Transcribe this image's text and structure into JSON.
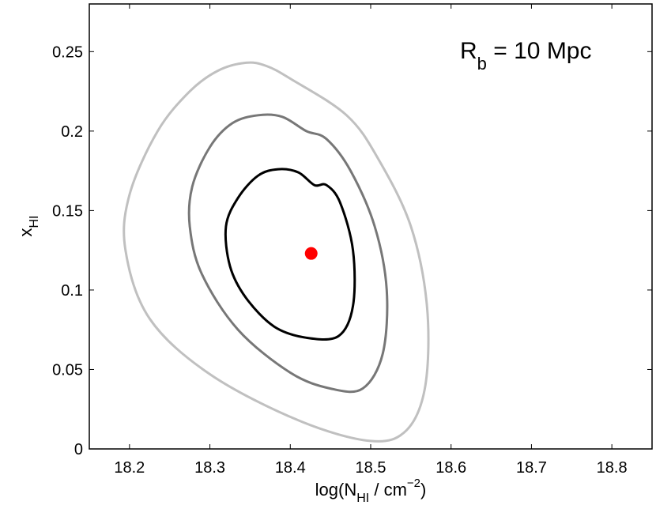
{
  "chart_data": {
    "type": "scatter",
    "xlabel": {
      "pre": "log(N",
      "sub": "HI",
      "mid": " / cm",
      "sup": "−2",
      "post": ")"
    },
    "ylabel": {
      "main": "x",
      "sub": "HI"
    },
    "annotation": {
      "main": "R",
      "sub": "b",
      "rest": " = 10 Mpc"
    },
    "xlim": [
      18.15,
      18.85
    ],
    "ylim": [
      0,
      0.28
    ],
    "xticks": [
      18.2,
      18.3,
      18.4,
      18.5,
      18.6,
      18.7,
      18.8
    ],
    "xtick_labels": [
      "18.2",
      "18.3",
      "18.4",
      "18.5",
      "18.6",
      "18.7",
      "18.8"
    ],
    "yticks": [
      0,
      0.05,
      0.1,
      0.15,
      0.2,
      0.25
    ],
    "ytick_labels": [
      "0",
      "0.05",
      "0.1",
      "0.15",
      "0.2",
      "0.25"
    ],
    "grid": false,
    "best_fit_point": {
      "x": 18.426,
      "y": 0.123,
      "color": "#ff0000"
    },
    "contours": [
      {
        "color": "#c0c0c0",
        "points": [
          [
            18.4,
            0.233
          ],
          [
            18.37,
            0.241
          ],
          [
            18.345,
            0.243
          ],
          [
            18.31,
            0.238
          ],
          [
            18.275,
            0.225
          ],
          [
            18.235,
            0.2
          ],
          [
            18.2,
            0.16
          ],
          [
            18.195,
            0.125
          ],
          [
            18.225,
            0.082
          ],
          [
            18.3,
            0.047
          ],
          [
            18.41,
            0.018
          ],
          [
            18.5,
            0.005
          ],
          [
            18.545,
            0.012
          ],
          [
            18.568,
            0.04
          ],
          [
            18.57,
            0.09
          ],
          [
            18.55,
            0.14
          ],
          [
            18.51,
            0.182
          ],
          [
            18.47,
            0.21
          ]
        ]
      },
      {
        "color": "#777777",
        "points": [
          [
            18.42,
            0.2
          ],
          [
            18.39,
            0.209
          ],
          [
            18.36,
            0.21
          ],
          [
            18.328,
            0.205
          ],
          [
            18.3,
            0.19
          ],
          [
            18.278,
            0.165
          ],
          [
            18.275,
            0.14
          ],
          [
            18.29,
            0.11
          ],
          [
            18.335,
            0.075
          ],
          [
            18.4,
            0.048
          ],
          [
            18.45,
            0.038
          ],
          [
            18.49,
            0.038
          ],
          [
            18.515,
            0.06
          ],
          [
            18.52,
            0.1
          ],
          [
            18.505,
            0.14
          ],
          [
            18.475,
            0.175
          ],
          [
            18.445,
            0.195
          ]
        ]
      },
      {
        "color": "#000000",
        "points": [
          [
            18.43,
            0.166
          ],
          [
            18.41,
            0.174
          ],
          [
            18.385,
            0.176
          ],
          [
            18.36,
            0.172
          ],
          [
            18.335,
            0.158
          ],
          [
            18.32,
            0.14
          ],
          [
            18.325,
            0.115
          ],
          [
            18.345,
            0.095
          ],
          [
            18.38,
            0.077
          ],
          [
            18.42,
            0.07
          ],
          [
            18.46,
            0.071
          ],
          [
            18.478,
            0.09
          ],
          [
            18.478,
            0.125
          ],
          [
            18.462,
            0.155
          ],
          [
            18.445,
            0.166
          ]
        ]
      }
    ]
  }
}
